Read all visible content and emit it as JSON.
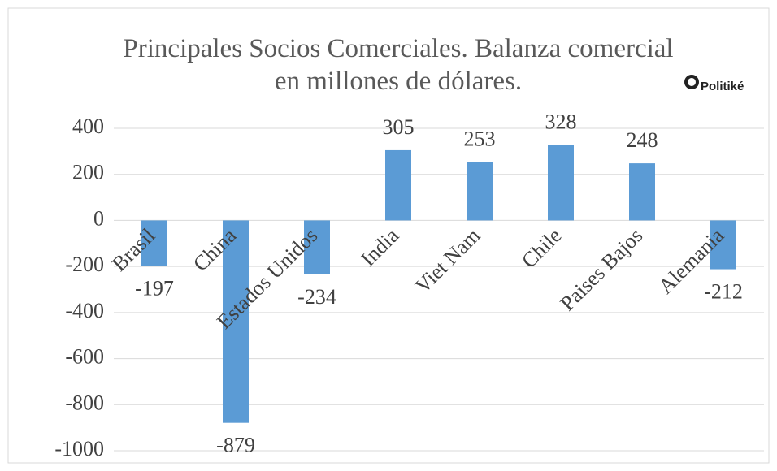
{
  "chart_data": {
    "type": "bar",
    "title": "Principales Socios Comerciales. Balanza comercial en millones de dólares.",
    "logo": "Politiké",
    "categories": [
      "Brasil",
      "China",
      "Estados Unidos",
      "India",
      "Viet Nam",
      "Chile",
      "Paises Bajos",
      "Alemania"
    ],
    "values": [
      -197,
      -879,
      -234,
      305,
      253,
      328,
      248,
      -212
    ],
    "color": "#5b9bd5",
    "ylim": [
      -1000,
      400
    ],
    "yticks": [
      -1000,
      -800,
      -600,
      -400,
      -200,
      0,
      200,
      400
    ],
    "grid": true
  }
}
